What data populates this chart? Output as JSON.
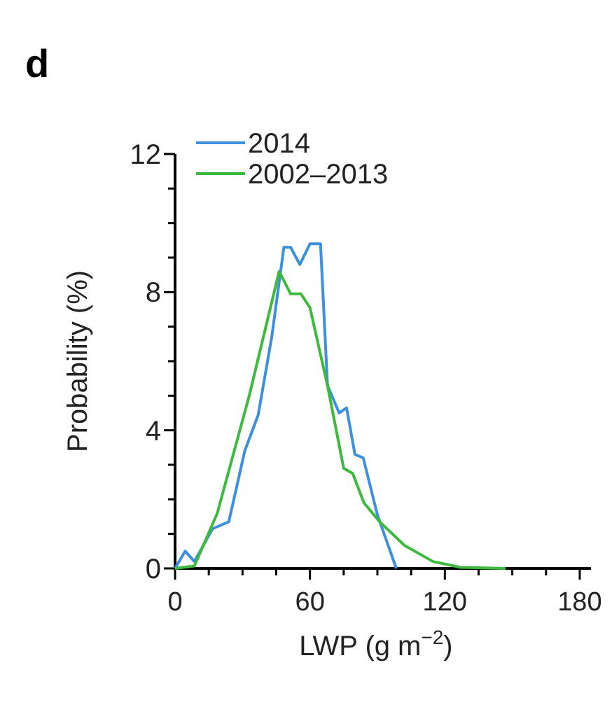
{
  "chart_data": {
    "type": "line",
    "title": "d",
    "xlabel": "LWP (g m$^{−2}$)",
    "ylabel": "Probability (%)",
    "xlim": [
      0,
      185
    ],
    "ylim": [
      0,
      12
    ],
    "xticks": [
      0,
      {
        "value": 15,
        "label": null
      },
      {
        "value": 30,
        "label": null
      },
      {
        "value": 45,
        "label": null
      },
      60,
      {
        "value": 75,
        "label": null
      },
      {
        "value": 90,
        "label": null
      },
      {
        "value": 105,
        "label": null
      },
      120,
      {
        "value": 135,
        "label": null
      },
      {
        "value": 150,
        "label": null
      },
      {
        "value": 165,
        "label": null
      },
      180
    ],
    "yticks": [
      0,
      {
        "value": 1,
        "label": null
      },
      {
        "value": 2,
        "label": null
      },
      {
        "value": 3,
        "label": null
      },
      4,
      {
        "value": 5,
        "label": null
      },
      {
        "value": 6,
        "label": null
      },
      {
        "value": 7,
        "label": null
      },
      8,
      {
        "value": 9,
        "label": null
      },
      {
        "value": 10,
        "label": null
      },
      {
        "value": 11,
        "label": null
      },
      12
    ],
    "legend": "top left",
    "grid": false,
    "marker": "none",
    "line_style": "solid",
    "series": [
      {
        "name": "2014",
        "color": "#3d8fe0",
        "x": [
          0,
          4.5,
          8.6,
          16.7,
          23.9,
          31,
          37,
          43,
          48.4,
          51.4,
          55.5,
          60,
          64.7,
          67.8,
          73,
          76.3,
          80,
          83.7,
          90,
          98.4
        ],
        "values": [
          0,
          0.5,
          0.2,
          1.15,
          1.35,
          3.4,
          4.45,
          6.7,
          9.3,
          9.3,
          8.8,
          9.4,
          9.4,
          5.3,
          4.5,
          4.65,
          3.3,
          3.2,
          1.55,
          0
        ]
      },
      {
        "name": "2002–2013",
        "color": "#3dba3d",
        "x": [
          0,
          8.6,
          18.8,
          33,
          46.3,
          51.4,
          56,
          60,
          67.8,
          75,
          79,
          84,
          91,
          102,
          114.7,
          127,
          147
        ],
        "values": [
          0,
          0.07,
          1.6,
          5,
          8.6,
          7.95,
          7.95,
          7.55,
          5.3,
          2.9,
          2.75,
          1.9,
          1.35,
          0.67,
          0.2,
          0.03,
          0
        ]
      }
    ]
  }
}
